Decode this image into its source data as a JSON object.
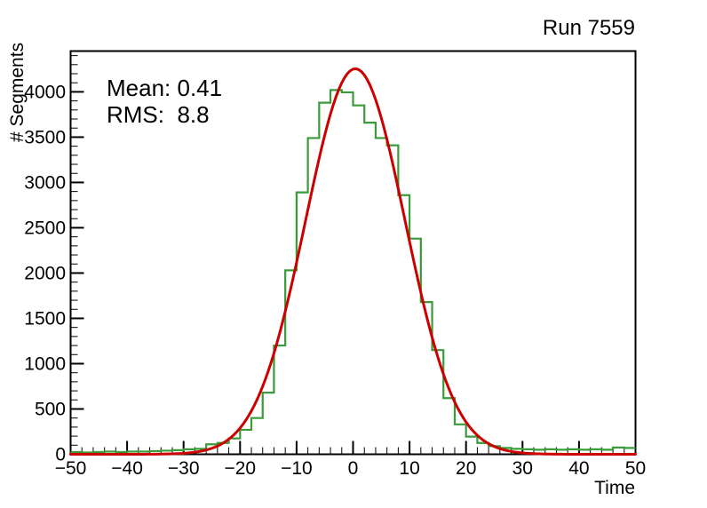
{
  "canvas_title": "Run 7559",
  "stats_box": {
    "mean_label": "Mean: 0.41",
    "rms_label": "RMS:  8.8"
  },
  "chart_data": {
    "type": "bar",
    "subtype": "step-histogram-with-gaussian-fit",
    "title": "Run 7559",
    "xlabel": "Time",
    "ylabel": "# Segments",
    "xlim": [
      -50,
      50
    ],
    "ylim": [
      0,
      4450
    ],
    "bin_width": 2,
    "bin_start": -50,
    "values": [
      25,
      20,
      25,
      30,
      25,
      30,
      30,
      35,
      40,
      45,
      55,
      60,
      110,
      125,
      175,
      270,
      400,
      680,
      1200,
      2030,
      2890,
      3490,
      3880,
      4020,
      3995,
      3850,
      3660,
      3490,
      3410,
      2860,
      2380,
      1680,
      1150,
      620,
      330,
      195,
      125,
      90,
      70,
      60,
      55,
      50,
      55,
      50,
      55,
      50,
      55,
      50,
      75,
      70
    ],
    "x_major_ticks": [
      -50,
      -40,
      -30,
      -20,
      -10,
      0,
      10,
      20,
      30,
      40,
      50
    ],
    "x_tick_labels": [
      "−50",
      "−40",
      "−30",
      "−20",
      "−10",
      "0",
      "10",
      "20",
      "30",
      "40",
      "50"
    ],
    "x_minor_step": 2,
    "y_major_ticks": [
      0,
      500,
      1000,
      1500,
      2000,
      2500,
      3000,
      3500,
      4000
    ],
    "y_tick_labels": [
      "0",
      "500",
      "1000",
      "1500",
      "2000",
      "2500",
      "3000",
      "3500",
      "4000"
    ],
    "y_minor_step": 100,
    "grid": false,
    "legend": null,
    "histogram_color": "#3a9b3a",
    "fit": {
      "shape": "gaussian",
      "amplitude": 4255,
      "mean": 0.4,
      "sigma": 8.8,
      "color": "#cc0000"
    },
    "axis_color": "#000000",
    "mean": 0.41,
    "rms": 8.8
  }
}
